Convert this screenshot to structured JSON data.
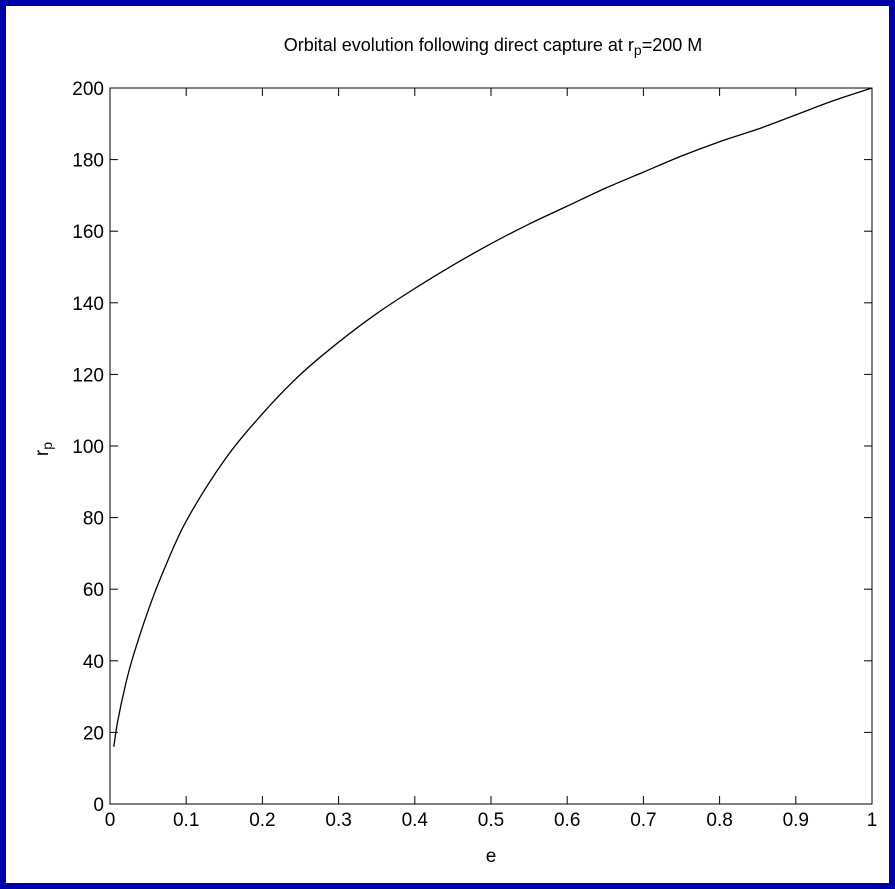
{
  "colors": {
    "border": "#0000aa",
    "background": "#ffffff",
    "curve": "#000000"
  },
  "chart_data": {
    "type": "line",
    "title": "Orbital evolution following direct capture at r",
    "title_subscript": "p",
    "title_suffix": "=200 M",
    "xlabel": "e",
    "ylabel": "r",
    "ylabel_subscript": "p",
    "xlim": [
      0,
      1
    ],
    "ylim": [
      0,
      200
    ],
    "xticks": [
      0,
      0.1,
      0.2,
      0.3,
      0.4,
      0.5,
      0.6,
      0.7,
      0.8,
      0.9,
      1
    ],
    "xtick_labels": [
      "0",
      "0.1",
      "0.2",
      "0.3",
      "0.4",
      "0.5",
      "0.6",
      "0.7",
      "0.8",
      "0.9",
      "1"
    ],
    "yticks": [
      0,
      20,
      40,
      60,
      80,
      100,
      120,
      140,
      160,
      180,
      200
    ],
    "ytick_labels": [
      "0",
      "20",
      "40",
      "60",
      "80",
      "100",
      "120",
      "140",
      "160",
      "180",
      "200"
    ],
    "grid": false,
    "series": [
      {
        "x": [
          0.005,
          0.01,
          0.02,
          0.03,
          0.05,
          0.07,
          0.1,
          0.15,
          0.2,
          0.25,
          0.3,
          0.35,
          0.4,
          0.45,
          0.5,
          0.55,
          0.6,
          0.65,
          0.7,
          0.75,
          0.8,
          0.85,
          0.9,
          0.95,
          1.0
        ],
        "y": [
          16,
          23,
          33,
          41,
          54,
          65,
          79,
          96,
          109,
          120,
          129,
          137,
          144,
          150.5,
          156.5,
          162,
          167,
          172,
          176.5,
          181,
          185,
          188.5,
          192.5,
          196.5,
          200
        ]
      }
    ]
  }
}
